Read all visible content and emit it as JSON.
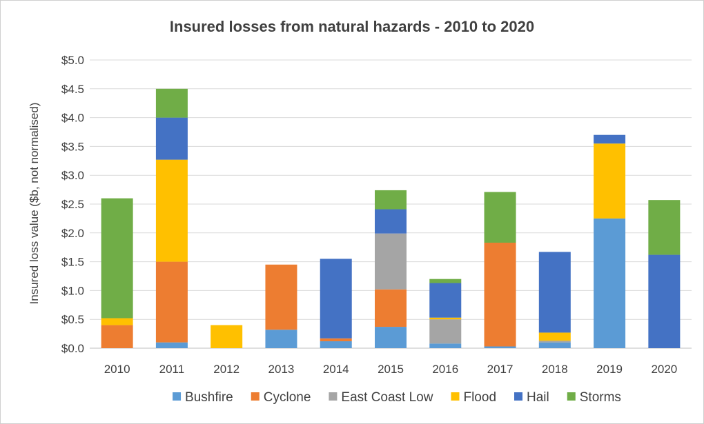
{
  "chart_data": {
    "type": "bar",
    "stacked": true,
    "title": "Insured losses from natural hazards - 2010 to 2020",
    "xlabel": "",
    "ylabel": "Insured loss value ($b, not normalised)",
    "ylim": [
      0,
      5.0
    ],
    "yticks": [
      "$0.0",
      "$0.5",
      "$1.0",
      "$1.5",
      "$2.0",
      "$2.5",
      "$3.0",
      "$3.5",
      "$4.0",
      "$4.5",
      "$5.0"
    ],
    "grid": true,
    "legend_position": "bottom",
    "categories": [
      "2010",
      "2011",
      "2012",
      "2013",
      "2014",
      "2015",
      "2016",
      "2017",
      "2018",
      "2019",
      "2020"
    ],
    "series": [
      {
        "name": "Bushfire",
        "color": "#5b9bd5",
        "values": [
          0.0,
          0.1,
          0.0,
          0.32,
          0.12,
          0.37,
          0.08,
          0.03,
          0.1,
          2.25,
          0.0
        ]
      },
      {
        "name": "Cyclone",
        "color": "#ed7d31",
        "values": [
          0.4,
          1.4,
          0.0,
          1.13,
          0.05,
          0.65,
          0.0,
          1.8,
          0.0,
          0.0,
          0.0
        ]
      },
      {
        "name": "East Coast Low",
        "color": "#a5a5a5",
        "values": [
          0.0,
          0.0,
          0.0,
          0.0,
          0.0,
          0.97,
          0.42,
          0.0,
          0.03,
          0.0,
          0.0
        ]
      },
      {
        "name": "Flood",
        "color": "#ffc000",
        "values": [
          0.12,
          1.77,
          0.4,
          0.0,
          0.0,
          0.0,
          0.03,
          0.0,
          0.14,
          1.3,
          0.0
        ]
      },
      {
        "name": "Hail",
        "color": "#4472c4",
        "values": [
          0.0,
          0.73,
          0.0,
          0.0,
          1.38,
          0.42,
          0.6,
          0.0,
          1.4,
          0.15,
          1.62
        ]
      },
      {
        "name": "Storms",
        "color": "#70ad47",
        "values": [
          2.08,
          0.5,
          0.0,
          0.0,
          0.0,
          0.33,
          0.07,
          0.88,
          0.0,
          0.0,
          0.95
        ]
      }
    ]
  }
}
